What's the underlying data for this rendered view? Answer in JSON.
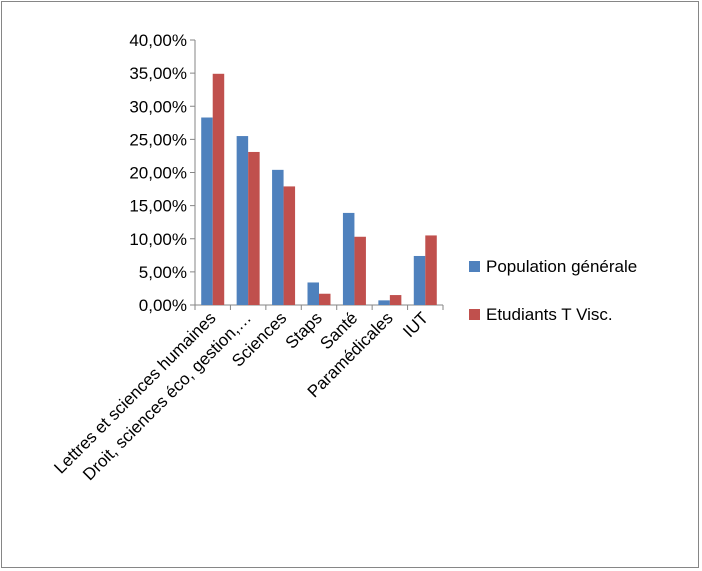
{
  "chart_data": {
    "type": "bar",
    "categories": [
      "Lettres et sciences humaines",
      "Droit, sciences éco, gestion,…",
      "Sciences",
      "Staps",
      "Santé",
      "Paramédicales",
      "IUT"
    ],
    "series": [
      {
        "name": "Population générale",
        "color": "#4f81bd",
        "values": [
          28.3,
          25.5,
          20.4,
          3.4,
          13.9,
          0.7,
          7.4
        ]
      },
      {
        "name": "Etudiants T Visc.",
        "color": "#c0504d",
        "values": [
          34.9,
          23.1,
          17.9,
          1.7,
          10.3,
          1.5,
          10.5
        ]
      }
    ],
    "yticks": [
      "0,00%",
      "5,00%",
      "10,00%",
      "15,00%",
      "20,00%",
      "25,00%",
      "30,00%",
      "35,00%",
      "40,00%"
    ],
    "ylim": [
      0,
      40
    ],
    "legend_position": "right",
    "grid": false
  }
}
